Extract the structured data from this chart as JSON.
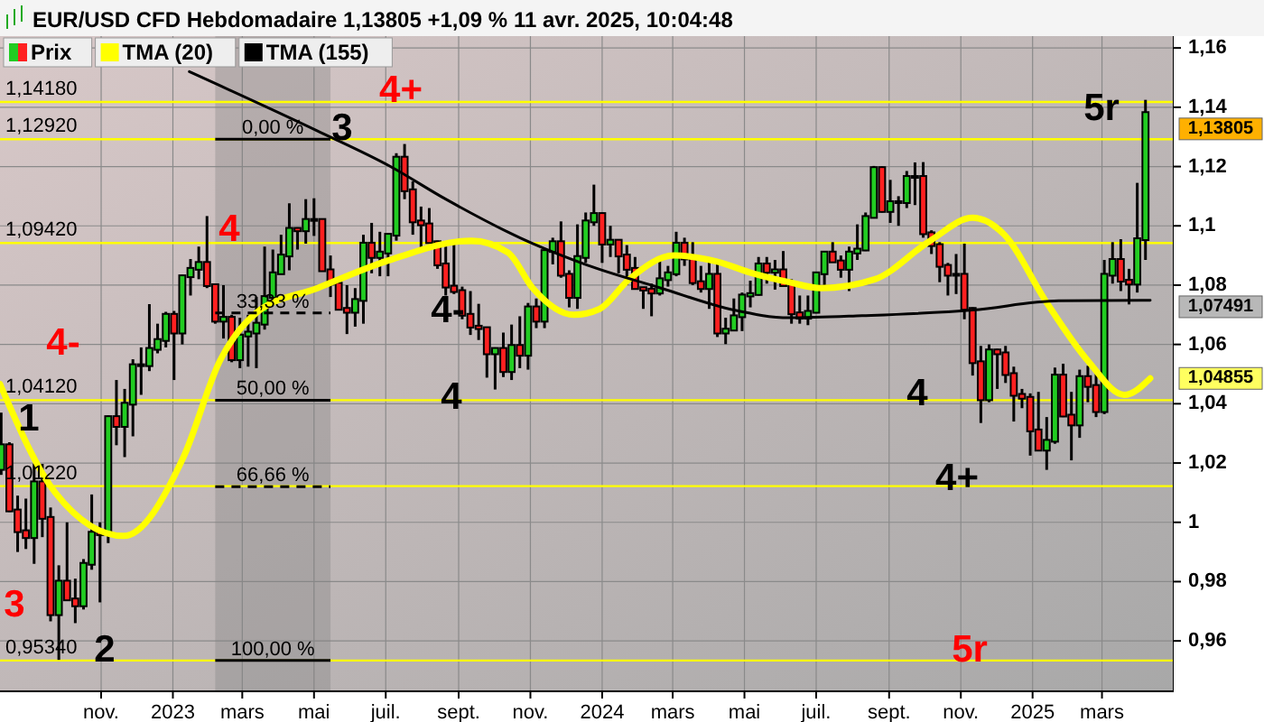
{
  "chart_data": {
    "type": "candlestick",
    "title": "EUR/USD CFD Hebdomadaire 1,13805 +1,09 % 11 avr. 2025, 10:04:48",
    "legend": "top left",
    "grid": true,
    "xlim": [
      "2022-08-07",
      "2025-05-01"
    ],
    "xticks": [
      {
        "value": "2022-11-01",
        "label": "nov."
      },
      {
        "value": "2023-01-01",
        "label": "2023"
      },
      {
        "value": "2023-03-01",
        "label": "mars"
      },
      {
        "value": "2023-05-01",
        "label": "mai"
      },
      {
        "value": "2023-07-01",
        "label": "juil."
      },
      {
        "value": "2023-09-01",
        "label": "sept."
      },
      {
        "value": "2023-11-01",
        "label": "nov."
      },
      {
        "value": "2024-01-01",
        "label": "2024"
      },
      {
        "value": "2024-03-01",
        "label": "mars"
      },
      {
        "value": "2024-05-01",
        "label": "mai"
      },
      {
        "value": "2024-07-01",
        "label": "juil."
      },
      {
        "value": "2024-09-01",
        "label": "sept."
      },
      {
        "value": "2024-11-01",
        "label": "nov."
      },
      {
        "value": "2025-01-01",
        "label": "2025"
      },
      {
        "value": "2025-03-01",
        "label": "mars"
      }
    ],
    "ylim": [
      0.943,
      1.164
    ],
    "yticks": [
      {
        "value": 0.96,
        "label": "0,96"
      },
      {
        "value": 0.98,
        "label": "0,98"
      },
      1,
      {
        "value": 1.02,
        "label": "1,02"
      },
      {
        "value": 1.04,
        "label": "1,04"
      },
      {
        "value": 1.06,
        "label": "1,06"
      },
      {
        "value": 1.08,
        "label": "1,08"
      },
      {
        "value": 1.1,
        "label": "1,1"
      },
      {
        "value": 1.12,
        "label": "1,12"
      },
      {
        "value": 1.14,
        "label": "1,14"
      },
      {
        "value": 1.16,
        "label": "1,16"
      }
    ],
    "series": [
      {
        "name": "Prix",
        "color": "#000000",
        "colors": [
          "#22cc22",
          "#ff2020",
          "#ff2020",
          "#ff2020",
          "#22cc22",
          "#ff2020",
          "#ff2020",
          "#22cc22",
          "#ff2020",
          "#ff2020",
          "#22cc22",
          "#22cc22",
          "#ff2020",
          "#22cc22",
          "#ff2020",
          "#22cc22",
          "#22cc22",
          "#22cc22",
          "#22cc22",
          "#22cc22",
          "#22cc22",
          "#ff2020",
          "#22cc22",
          "#22cc22",
          "#22cc22",
          "#ff2020",
          "#ff2020",
          "#22cc22",
          "#ff2020",
          "#22cc22",
          "#22cc22",
          "#22cc22",
          "#22cc22",
          "#22cc22",
          "#22cc22",
          "#22cc22",
          "#ff2020",
          "#22cc22",
          "#22cc22",
          "#ff2020",
          "#ff2020",
          "#ff2020",
          "#ff2020",
          "#22cc22",
          "#22cc22",
          "#ff2020",
          "#22cc22",
          "#22cc22",
          "#22cc22",
          "#ff2020",
          "#ff2020",
          "#ff2020",
          "#ff2020",
          "#ff2020",
          "#ff2020",
          "#ff2020",
          "#ff2020",
          "#ff2020",
          "#ff2020",
          "#ff2020",
          "#22cc22",
          "#ff2020",
          "#22cc22",
          "#ff2020",
          "#22cc22",
          "#ff2020",
          "#22cc22",
          "#22cc22",
          "#ff2020",
          "#ff2020",
          "#22cc22",
          "#22cc22",
          "#22cc22",
          "#ff2020",
          "#22cc22",
          "#ff2020",
          "#ff2020",
          "#ff2020",
          "#ff2020",
          "#ff2020",
          "#22cc22",
          "#22cc22",
          "#22cc22",
          "#ff2020",
          "#ff2020",
          "#ff2020",
          "#22cc22",
          "#ff2020",
          "#22cc22",
          "#22cc22",
          "#22cc22",
          "#22cc22",
          "#22cc22",
          "#ff2020",
          "#22cc22",
          "#ff2020",
          "#ff2020",
          "#ff2020",
          "#22cc22",
          "#22cc22",
          "#22cc22",
          "#ff2020",
          "#ff2020",
          "#22cc22",
          "#22cc22",
          "#22cc22",
          "#22cc22",
          "#ff2020",
          "#22cc22",
          "#22cc22",
          "#22cc22",
          "#22cc22",
          "#ff2020",
          "#ff2020",
          "#ff2020",
          "#ff2020",
          "#22cc22",
          "#ff2020",
          "#ff2020",
          "#ff2020",
          "#22cc22",
          "#ff2020",
          "#ff2020",
          "#ff2020",
          "#ff2020",
          "#ff2020",
          "#ff2020",
          "#22cc22",
          "#22cc22",
          "#ff2020",
          "#ff2020",
          "#22cc22",
          "#ff2020",
          "#ff2020",
          "#22cc22",
          "#22cc22",
          "#ff2020",
          "#ff2020",
          "#22cc22",
          "#22cc22"
        ],
        "x": [
          "2022-08-08",
          "2022-08-15",
          "2022-08-22",
          "2022-08-29",
          "2022-09-05",
          "2022-09-12",
          "2022-09-19",
          "2022-09-26",
          "2022-10-03",
          "2022-10-10",
          "2022-10-17",
          "2022-10-24",
          "2022-10-31",
          "2022-11-07",
          "2022-11-14",
          "2022-11-21",
          "2022-11-28",
          "2022-12-05",
          "2022-12-12",
          "2022-12-19",
          "2022-12-26",
          "2023-01-02",
          "2023-01-09",
          "2023-01-16",
          "2023-01-23",
          "2023-01-30",
          "2023-02-06",
          "2023-02-13",
          "2023-02-20",
          "2023-02-27",
          "2023-03-06",
          "2023-03-13",
          "2023-03-20",
          "2023-03-27",
          "2023-04-03",
          "2023-04-10",
          "2023-04-17",
          "2023-04-24",
          "2023-05-01",
          "2023-05-08",
          "2023-05-15",
          "2023-05-22",
          "2023-05-29",
          "2023-06-05",
          "2023-06-12",
          "2023-06-19",
          "2023-06-26",
          "2023-07-03",
          "2023-07-10",
          "2023-07-17",
          "2023-07-24",
          "2023-07-31",
          "2023-08-07",
          "2023-08-14",
          "2023-08-21",
          "2023-08-28",
          "2023-09-04",
          "2023-09-11",
          "2023-09-18",
          "2023-09-25",
          "2023-10-02",
          "2023-10-09",
          "2023-10-16",
          "2023-10-23",
          "2023-10-30",
          "2023-11-06",
          "2023-11-13",
          "2023-11-20",
          "2023-11-27",
          "2023-12-04",
          "2023-12-11",
          "2023-12-18",
          "2023-12-25",
          "2024-01-01",
          "2024-01-08",
          "2024-01-15",
          "2024-01-22",
          "2024-01-29",
          "2024-02-05",
          "2024-02-12",
          "2024-02-19",
          "2024-02-26",
          "2024-03-04",
          "2024-03-11",
          "2024-03-18",
          "2024-03-25",
          "2024-04-01",
          "2024-04-08",
          "2024-04-15",
          "2024-04-22",
          "2024-04-29",
          "2024-05-06",
          "2024-05-13",
          "2024-05-20",
          "2024-05-27",
          "2024-06-03",
          "2024-06-10",
          "2024-06-17",
          "2024-06-24",
          "2024-07-01",
          "2024-07-08",
          "2024-07-15",
          "2024-07-22",
          "2024-07-29",
          "2024-08-05",
          "2024-08-12",
          "2024-08-19",
          "2024-08-26",
          "2024-09-02",
          "2024-09-09",
          "2024-09-16",
          "2024-09-23",
          "2024-09-30",
          "2024-10-07",
          "2024-10-14",
          "2024-10-21",
          "2024-10-28",
          "2024-11-04",
          "2024-11-11",
          "2024-11-18",
          "2024-11-25",
          "2024-12-02",
          "2024-12-09",
          "2024-12-16",
          "2024-12-23",
          "2024-12-30",
          "2025-01-06",
          "2025-01-13",
          "2025-01-20",
          "2025-01-27",
          "2025-02-03",
          "2025-02-10",
          "2025-02-17",
          "2025-02-24",
          "2025-03-03",
          "2025-03-10",
          "2025-03-17",
          "2025-03-24",
          "2025-03-31",
          "2025-04-07"
        ],
        "ohlc": [
          [
            1.018,
            1.037,
            1.016,
            1.026
          ],
          [
            1.026,
            1.027,
            1.0035,
            1.004
          ],
          [
            1.004,
            1.009,
            0.99,
            0.997
          ],
          [
            0.997,
            1.008,
            0.991,
            0.995
          ],
          [
            0.995,
            1.0198,
            0.986,
            1.0135
          ],
          [
            1.0135,
            1.0197,
            0.995,
            1.0015
          ],
          [
            1.0015,
            1.005,
            0.9666,
            0.969
          ],
          [
            0.969,
            0.9855,
            0.9536,
            0.98
          ],
          [
            0.98,
            1.0,
            0.974,
            0.974
          ],
          [
            0.974,
            0.981,
            0.966,
            0.972
          ],
          [
            0.972,
            0.9876,
            0.9706,
            0.986
          ],
          [
            0.986,
            1.0094,
            0.984,
            0.9965
          ],
          [
            0.9965,
            1.0,
            0.973,
            0.996
          ],
          [
            0.996,
            1.036,
            0.993,
            1.0355
          ],
          [
            1.0355,
            1.048,
            1.026,
            1.0325
          ],
          [
            1.0325,
            1.045,
            1.022,
            1.04
          ],
          [
            1.04,
            1.055,
            1.029,
            1.053
          ],
          [
            1.053,
            1.059,
            1.043,
            1.053
          ],
          [
            1.053,
            1.0736,
            1.051,
            1.0585
          ],
          [
            1.0585,
            1.067,
            1.057,
            1.0615
          ],
          [
            1.0615,
            1.071,
            1.059,
            1.07
          ],
          [
            1.07,
            1.0713,
            1.048,
            1.064
          ],
          [
            1.064,
            1.0835,
            1.06,
            1.083
          ],
          [
            1.083,
            1.0888,
            1.0765,
            1.0855
          ],
          [
            1.0855,
            1.093,
            1.082,
            1.0875
          ],
          [
            1.0875,
            1.1033,
            1.079,
            1.08
          ],
          [
            1.08,
            1.08,
            1.067,
            1.068
          ],
          [
            1.068,
            1.08,
            1.062,
            1.069
          ],
          [
            1.069,
            1.07,
            1.054,
            1.055
          ],
          [
            1.055,
            1.069,
            1.052,
            1.063
          ],
          [
            1.063,
            1.07,
            1.0525,
            1.064
          ],
          [
            1.064,
            1.076,
            1.052,
            1.067
          ],
          [
            1.067,
            1.093,
            1.065,
            1.076
          ],
          [
            1.076,
            1.092,
            1.075,
            1.084
          ],
          [
            1.084,
            1.097,
            1.084,
            1.09
          ],
          [
            1.09,
            1.1076,
            1.085,
            1.099
          ],
          [
            1.099,
            1.0995,
            1.092,
            1.0985
          ],
          [
            1.0985,
            1.109,
            1.094,
            1.102
          ],
          [
            1.102,
            1.1093,
            1.0966,
            1.102
          ],
          [
            1.102,
            1.1025,
            1.085,
            1.085
          ],
          [
            1.085,
            1.09,
            1.076,
            1.0805
          ],
          [
            1.0805,
            1.0805,
            1.0715,
            1.072
          ],
          [
            1.072,
            1.08,
            1.0635,
            1.071
          ],
          [
            1.071,
            1.079,
            1.066,
            1.075
          ],
          [
            1.075,
            1.097,
            1.067,
            1.094
          ],
          [
            1.094,
            1.101,
            1.084,
            1.0895
          ],
          [
            1.0895,
            1.098,
            1.083,
            1.091
          ],
          [
            1.091,
            1.097,
            1.083,
            1.097
          ],
          [
            1.097,
            1.1245,
            1.095,
            1.123
          ],
          [
            1.123,
            1.1276,
            1.109,
            1.112
          ],
          [
            1.112,
            1.115,
            1.097,
            1.1015
          ],
          [
            1.1015,
            1.1065,
            1.091,
            1.1005
          ],
          [
            1.1005,
            1.106,
            1.094,
            1.0945
          ],
          [
            1.0945,
            1.095,
            1.0855,
            1.087
          ],
          [
            1.087,
            1.093,
            1.0765,
            1.0795
          ],
          [
            1.0795,
            1.094,
            1.077,
            1.078
          ],
          [
            1.078,
            1.0795,
            1.0685,
            1.07
          ],
          [
            1.07,
            1.078,
            1.0632,
            1.066
          ],
          [
            1.066,
            1.0737,
            1.0615,
            1.0655
          ],
          [
            1.0655,
            1.0655,
            1.0488,
            1.057
          ],
          [
            1.057,
            1.059,
            1.0448,
            1.0585
          ],
          [
            1.0585,
            1.064,
            1.049,
            1.051
          ],
          [
            1.051,
            1.0667,
            1.048,
            1.0595
          ],
          [
            1.0595,
            1.0695,
            1.052,
            1.0565
          ],
          [
            1.0565,
            1.074,
            1.0515,
            1.0725
          ],
          [
            1.0725,
            1.0755,
            1.0655,
            1.068
          ],
          [
            1.068,
            1.0915,
            1.0655,
            1.0915
          ],
          [
            1.0915,
            1.096,
            1.087,
            1.0945
          ],
          [
            1.0945,
            1.1015,
            1.0825,
            1.0835
          ],
          [
            1.0835,
            1.085,
            1.0725,
            1.076
          ],
          [
            1.076,
            1.1005,
            1.072,
            1.0895
          ],
          [
            1.0895,
            1.1045,
            1.0875,
            1.1015
          ],
          [
            1.1015,
            1.1139,
            1.1,
            1.104
          ],
          [
            1.104,
            1.1045,
            1.0875,
            1.094
          ],
          [
            1.094,
            1.1,
            1.0895,
            1.095
          ],
          [
            1.095,
            1.0955,
            1.084,
            1.09
          ],
          [
            1.09,
            1.0935,
            1.08,
            1.0855
          ],
          [
            1.0855,
            1.0895,
            1.0785,
            1.079
          ],
          [
            1.079,
            1.079,
            1.072,
            1.0785
          ],
          [
            1.0785,
            1.0805,
            1.0695,
            1.0775
          ],
          [
            1.0775,
            1.089,
            1.0765,
            1.082
          ],
          [
            1.082,
            1.0865,
            1.0795,
            1.084
          ],
          [
            1.084,
            1.098,
            1.083,
            1.094
          ],
          [
            1.094,
            1.096,
            1.0865,
            1.089
          ],
          [
            1.089,
            1.0945,
            1.08,
            1.081
          ],
          [
            1.081,
            1.0865,
            1.0775,
            1.079
          ],
          [
            1.079,
            1.088,
            1.072,
            1.0835
          ],
          [
            1.0835,
            1.0885,
            1.0625,
            1.064
          ],
          [
            1.064,
            1.069,
            1.0601,
            1.065
          ],
          [
            1.065,
            1.0755,
            1.065,
            1.0695
          ],
          [
            1.0695,
            1.0775,
            1.0645,
            1.0765
          ],
          [
            1.0765,
            1.0815,
            1.0725,
            1.077
          ],
          [
            1.077,
            1.0895,
            1.0765,
            1.087
          ],
          [
            1.087,
            1.0895,
            1.0805,
            1.0845
          ],
          [
            1.0845,
            1.0885,
            1.0785,
            1.085
          ],
          [
            1.085,
            1.0915,
            1.08,
            1.08
          ],
          [
            1.08,
            1.082,
            1.067,
            1.0705
          ],
          [
            1.0705,
            1.0765,
            1.067,
            1.069
          ],
          [
            1.069,
            1.0765,
            1.0665,
            1.071
          ],
          [
            1.071,
            1.0845,
            1.0705,
            1.084
          ],
          [
            1.084,
            1.091,
            1.08,
            1.091
          ],
          [
            1.091,
            1.0945,
            1.088,
            1.088
          ],
          [
            1.088,
            1.09,
            1.0825,
            1.0855
          ],
          [
            1.0855,
            1.093,
            1.078,
            1.091
          ],
          [
            1.091,
            1.1005,
            1.0885,
            1.092
          ],
          [
            1.092,
            1.1045,
            1.0915,
            1.103
          ],
          [
            1.103,
            1.1202,
            1.1025,
            1.1195
          ],
          [
            1.1195,
            1.12,
            1.1045,
            1.105
          ],
          [
            1.105,
            1.1155,
            1.101,
            1.108
          ],
          [
            1.108,
            1.11,
            1.1,
            1.108
          ],
          [
            1.108,
            1.1185,
            1.106,
            1.1165
          ],
          [
            1.1165,
            1.1214,
            1.107,
            1.1165
          ],
          [
            1.1165,
            1.1215,
            1.096,
            1.0975
          ],
          [
            1.0975,
            1.0985,
            1.0905,
            1.0935
          ],
          [
            1.0935,
            1.0945,
            1.081,
            1.0865
          ],
          [
            1.0865,
            1.0875,
            1.0765,
            1.0835
          ],
          [
            1.0835,
            1.0905,
            1.077,
            1.0835
          ],
          [
            1.0835,
            1.094,
            1.0685,
            1.072
          ],
          [
            1.072,
            1.0725,
            1.0495,
            1.054
          ],
          [
            1.054,
            1.0595,
            1.0335,
            1.0415
          ],
          [
            1.0415,
            1.06,
            1.0405,
            1.058
          ],
          [
            1.058,
            1.0585,
            1.045,
            1.057
          ],
          [
            1.057,
            1.0595,
            1.047,
            1.05
          ],
          [
            1.05,
            1.0525,
            1.034,
            1.043
          ],
          [
            1.043,
            1.045,
            1.0385,
            1.042
          ],
          [
            1.042,
            1.0435,
            1.0225,
            1.031
          ],
          [
            1.031,
            1.044,
            1.0245,
            1.0245
          ],
          [
            1.0245,
            1.0355,
            1.0177,
            1.0275
          ],
          [
            1.0275,
            1.0522,
            1.0265,
            1.0495
          ],
          [
            1.0495,
            1.0535,
            1.0355,
            1.036
          ],
          [
            1.036,
            1.044,
            1.0209,
            1.033
          ],
          [
            1.033,
            1.0515,
            1.0285,
            1.049
          ],
          [
            1.049,
            1.0528,
            1.0405,
            1.046
          ],
          [
            1.046,
            1.0505,
            1.0355,
            1.0375
          ],
          [
            1.0375,
            1.0885,
            1.0365,
            1.0835
          ],
          [
            1.0835,
            1.0945,
            1.0805,
            1.0885
          ],
          [
            1.0885,
            1.0955,
            1.078,
            1.0815
          ],
          [
            1.0815,
            1.0855,
            1.0735,
            1.0805
          ],
          [
            1.0805,
            1.1145,
            1.0775,
            1.0955
          ],
          [
            1.0955,
            1.1425,
            1.0885,
            1.13805
          ]
        ]
      },
      {
        "name": "TMA (20)",
        "type": "line",
        "color": "#ffff00",
        "x": [
          "2022-08-07",
          "2022-09-23",
          "2022-11-20",
          "2023-01-10",
          "2023-02-10",
          "2023-03-14",
          "2023-05-04",
          "2023-07-01",
          "2023-09-12",
          "2023-10-13",
          "2023-11-03",
          "2023-12-08",
          "2023-12-30",
          "2024-01-24",
          "2024-03-02",
          "2024-04-07",
          "2024-05-08",
          "2024-06-08",
          "2024-07-05",
          "2024-08-20",
          "2024-10-06",
          "2024-11-11",
          "2024-12-08",
          "2025-01-12",
          "2025-02-17",
          "2025-03-20",
          "2025-04-11"
        ],
        "values": [
          1.0466,
          1.01,
          0.9954,
          1.022,
          1.0545,
          1.071,
          1.079,
          1.088,
          1.095,
          1.091,
          1.079,
          1.07,
          1.072,
          1.082,
          1.09,
          1.088,
          1.084,
          1.081,
          1.079,
          1.082,
          1.095,
          1.1027,
          1.097,
          1.0747,
          1.0545,
          1.043,
          1.04855
        ]
      },
      {
        "name": "TMA (155)",
        "type": "line",
        "color": "#000000",
        "x": [
          "2023-01-15",
          "2023-05-04",
          "2023-07-05",
          "2023-08-21",
          "2023-11-03",
          "2023-12-19",
          "2024-02-20",
          "2024-04-22",
          "2024-06-08",
          "2024-08-09",
          "2024-11-11",
          "2025-01-23",
          "2025-04-11"
        ],
        "values": [
          1.152,
          1.132,
          1.12,
          1.109,
          1.094,
          1.0868,
          1.079,
          1.0716,
          1.069,
          1.0697,
          1.0716,
          1.0747,
          1.07491
        ]
      }
    ],
    "ref_lines": [
      {
        "axis": "y",
        "value": 1.1418,
        "label": "1,14180",
        "color": "#ffff00"
      },
      {
        "axis": "y",
        "value": 1.1292,
        "label": "1,12920",
        "color": "#ffff00"
      },
      {
        "axis": "y",
        "value": 1.0942,
        "label": "1,09420",
        "color": "#ffff00"
      },
      {
        "axis": "y",
        "value": 1.0412,
        "label": "1,04120",
        "color": "#ffff00"
      },
      {
        "axis": "y",
        "value": 1.0122,
        "label": "1,01220",
        "color": "#ffff00"
      },
      {
        "axis": "y",
        "value": 0.9534,
        "label": "0,95340",
        "color": "#ffff00"
      }
    ],
    "bands": [
      {
        "axis": "x",
        "from": "2023-02-06",
        "to": "2023-05-15",
        "label": null,
        "color": "#808080"
      }
    ],
    "annotations": [
      {
        "text": "0,00 %",
        "x": "2023-03-27",
        "y": 1.1292
      },
      {
        "text": "33,33 %",
        "x": "2023-03-27",
        "y": 1.0706
      },
      {
        "text": "50,00 %",
        "x": "2023-03-27",
        "y": 1.0412
      },
      {
        "text": "66,66 %",
        "x": "2023-03-27",
        "y": 1.012
      },
      {
        "text": "100,00 %",
        "x": "2023-03-27",
        "y": 0.9534
      },
      "3",
      "1",
      "2",
      "4-",
      "4",
      {
        "text": "3",
        "x": "2023-05-25",
        "y": 1.1292
      },
      "4+",
      "4-",
      "4",
      "4",
      "4+",
      "5r",
      "5r",
      {
        "text": "1,13805",
        "x": "2025-04-11",
        "y": 1.13805
      },
      {
        "text": "1,07491",
        "x": "2025-04-11",
        "y": 1.07491
      },
      {
        "text": "1,04855",
        "x": "2025-04-11",
        "y": 1.04855
      }
    ]
  }
}
